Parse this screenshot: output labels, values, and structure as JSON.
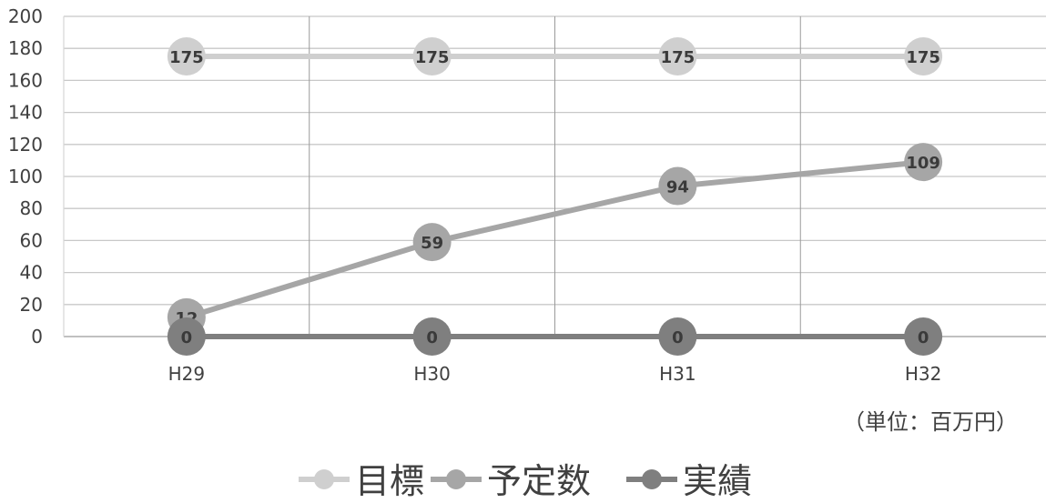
{
  "chart_data": {
    "type": "line",
    "categories": [
      "H29",
      "H30",
      "H31",
      "H32"
    ],
    "series": [
      {
        "name": "目標",
        "values": [
          175,
          175,
          175,
          175
        ],
        "color": "#cfcfcf"
      },
      {
        "name": "予定数",
        "values": [
          12,
          59,
          94,
          109
        ],
        "color": "#a6a6a6"
      },
      {
        "name": "実績",
        "values": [
          0,
          0,
          0,
          0
        ],
        "color": "#7f7f7f"
      }
    ],
    "yticks": [
      "0",
      "20",
      "40",
      "60",
      "80",
      "100",
      "120",
      "140",
      "160",
      "180",
      "200"
    ],
    "ylim": [
      0,
      200
    ],
    "grid": true,
    "legend_position": "bottom",
    "unit_note": "（単位：百万円）"
  }
}
